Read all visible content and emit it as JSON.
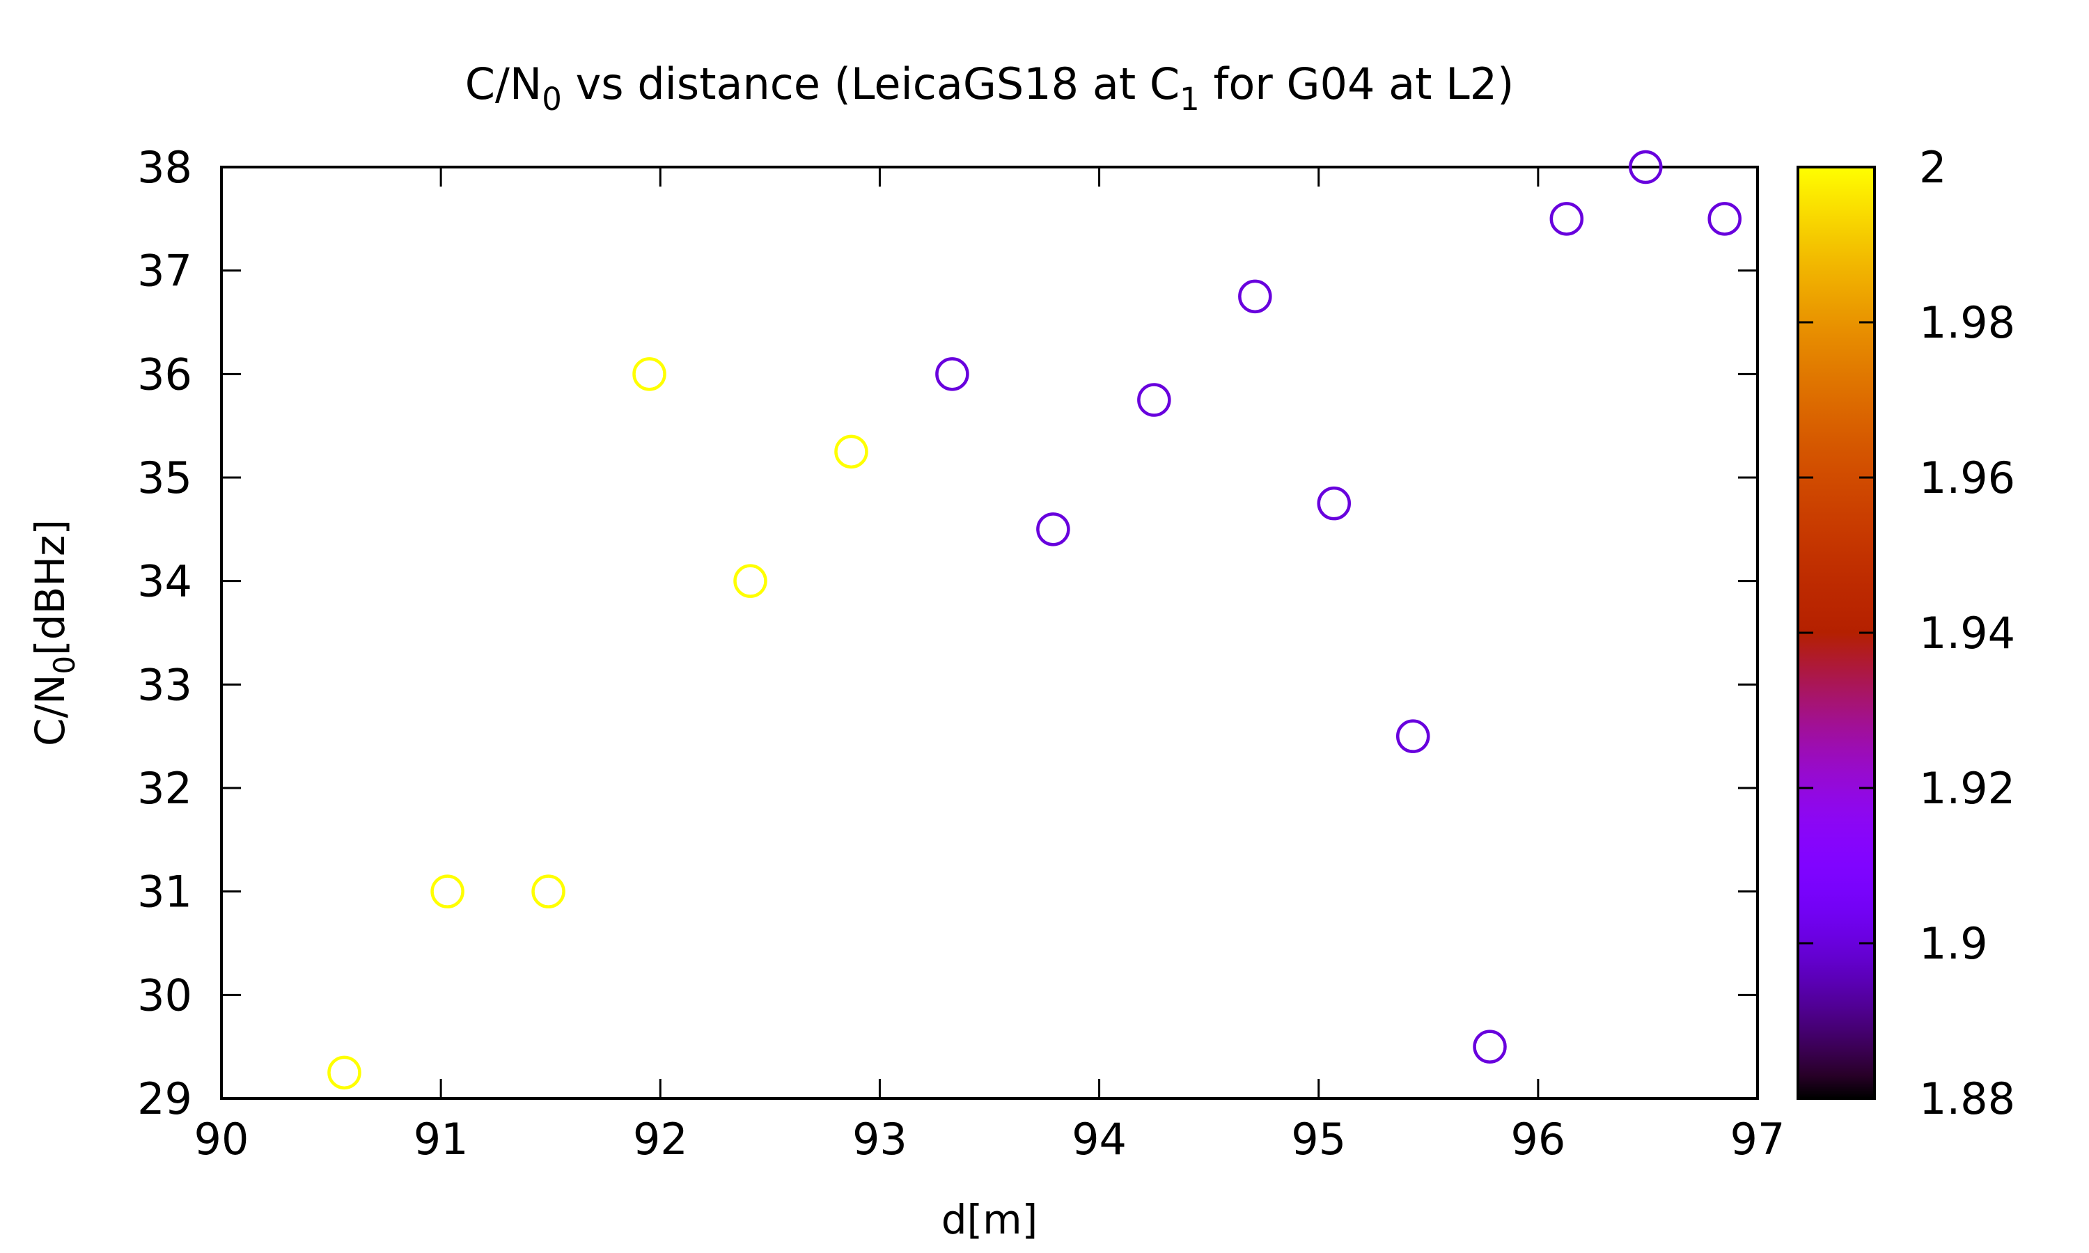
{
  "chart_data": {
    "type": "scatter",
    "title": {
      "parts": [
        {
          "text": "C/N"
        },
        {
          "text": "0",
          "sub": true
        },
        {
          "text": " vs distance (LeicaGS18 at C"
        },
        {
          "text": "1",
          "sub": true
        },
        {
          "text": " for G04 at L2)"
        }
      ]
    },
    "xlabel": "d[m]",
    "ylabel": {
      "parts": [
        {
          "text": "C/N"
        },
        {
          "text": "0",
          "sub": true
        },
        {
          "text": "[dBHz]"
        }
      ]
    },
    "xlim": [
      90,
      97
    ],
    "ylim": [
      29,
      38
    ],
    "xticks": [
      90,
      91,
      92,
      93,
      94,
      95,
      96,
      97
    ],
    "yticks": [
      29,
      30,
      31,
      32,
      33,
      34,
      35,
      36,
      37,
      38
    ],
    "colorbar": {
      "range": [
        1.88,
        2.0
      ],
      "ticks": [
        "1.88",
        "1.9",
        "1.92",
        "1.94",
        "1.96",
        "1.98",
        "2"
      ],
      "palette": "gnuplot"
    },
    "grid": false,
    "marker": "open-circle",
    "points": [
      {
        "x": 90.56,
        "y": 29.25,
        "c": 2.0
      },
      {
        "x": 91.03,
        "y": 31.0,
        "c": 2.0
      },
      {
        "x": 91.49,
        "y": 31.0,
        "c": 2.0
      },
      {
        "x": 91.95,
        "y": 36.0,
        "c": 2.0
      },
      {
        "x": 92.41,
        "y": 34.0,
        "c": 2.0
      },
      {
        "x": 92.87,
        "y": 35.25,
        "c": 2.0
      },
      {
        "x": 93.33,
        "y": 36.0,
        "c": 1.9
      },
      {
        "x": 93.79,
        "y": 34.5,
        "c": 1.9
      },
      {
        "x": 94.25,
        "y": 35.75,
        "c": 1.9
      },
      {
        "x": 94.71,
        "y": 36.75,
        "c": 1.9
      },
      {
        "x": 95.07,
        "y": 34.75,
        "c": 1.9
      },
      {
        "x": 95.43,
        "y": 32.5,
        "c": 1.9
      },
      {
        "x": 95.78,
        "y": 29.5,
        "c": 1.9
      },
      {
        "x": 96.13,
        "y": 37.5,
        "c": 1.9
      },
      {
        "x": 96.49,
        "y": 38.0,
        "c": 1.9
      },
      {
        "x": 96.85,
        "y": 37.5,
        "c": 1.9
      }
    ]
  }
}
